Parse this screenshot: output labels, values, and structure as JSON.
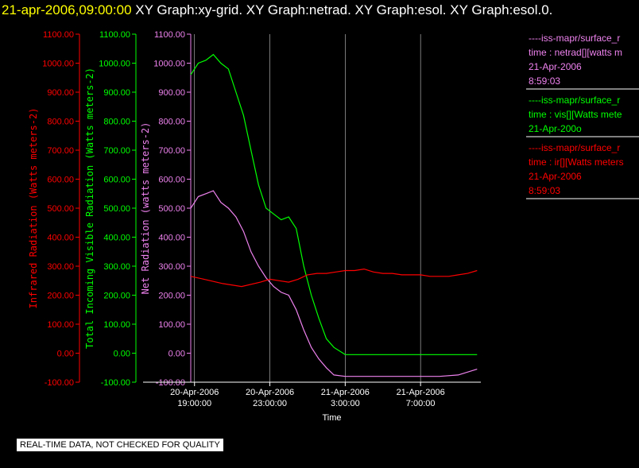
{
  "header": {
    "timestamp": "21-apr-2006,09:00:00",
    "graphs": [
      "XY Graph:xy-grid.",
      "XY Graph:netrad.",
      "XY Graph:esol.",
      "XY Graph:esol.0."
    ]
  },
  "footnote": "REAL-TIME DATA, NOT CHECKED FOR QUALITY",
  "colors": {
    "ir": "#ff0000",
    "vis": "#00ff00",
    "net": "#ee82ee",
    "grid": "#ffffff",
    "text": "#ffffff"
  },
  "chart_data": {
    "type": "line",
    "xlabel": "Time",
    "x_ticks": [
      {
        "date": "20-Apr-2006",
        "time": "19:00:00",
        "hours": 19
      },
      {
        "date": "20-Apr-2006",
        "time": "23:00:00",
        "hours": 23
      },
      {
        "date": "21-Apr-2006",
        "time": "3:00:00",
        "hours": 27
      },
      {
        "date": "21-Apr-2006",
        "time": "7:00:00",
        "hours": 31
      }
    ],
    "x_range_hours": [
      18.8,
      34.2
    ],
    "y_axes": [
      {
        "id": "ir",
        "label": "Infrared Radiation (Watts meters-2)",
        "color": "#ff0000",
        "ylim": [
          -100,
          1100
        ],
        "ticks": [
          "-100.00",
          "0.00",
          "100.00",
          "200.00",
          "300.00",
          "400.00",
          "500.00",
          "600.00",
          "700.00",
          "800.00",
          "900.00",
          "1000.00",
          "1100.00"
        ]
      },
      {
        "id": "vis",
        "label": "Total Incoming Visible Radiation (Watts meters-2)",
        "color": "#00ff00",
        "ylim": [
          -100,
          1100
        ],
        "ticks": [
          "-100.00",
          "0.00",
          "100.00",
          "200.00",
          "300.00",
          "400.00",
          "500.00",
          "600.00",
          "700.00",
          "800.00",
          "900.00",
          "1000.00",
          "1100.00"
        ]
      },
      {
        "id": "net",
        "label": "Net Radiation (watts meters-2)",
        "color": "#ee82ee",
        "ylim": [
          -100,
          1100
        ],
        "ticks": [
          "-100.00",
          "0.00",
          "100.00",
          "200.00",
          "300.00",
          "400.00",
          "500.00",
          "600.00",
          "700.00",
          "800.00",
          "900.00",
          "1000.00",
          "1100.00"
        ]
      }
    ],
    "series": [
      {
        "id": "vis",
        "color": "#00ff00",
        "x": [
          18.8,
          19.2,
          19.6,
          20.0,
          20.4,
          20.8,
          21.2,
          21.6,
          22.0,
          22.4,
          22.8,
          23.2,
          23.6,
          24.0,
          24.4,
          24.8,
          25.2,
          25.6,
          26.0,
          26.4,
          27.0,
          28.0,
          29.0,
          30.0,
          31.0,
          32.0,
          33.0,
          34.0
        ],
        "values": [
          960,
          1000,
          1010,
          1030,
          1000,
          980,
          900,
          820,
          700,
          580,
          500,
          480,
          460,
          470,
          430,
          300,
          200,
          120,
          50,
          20,
          -5,
          -5,
          -5,
          -5,
          -5,
          -5,
          -5,
          -5
        ]
      },
      {
        "id": "net",
        "color": "#ee82ee",
        "x": [
          18.8,
          19.2,
          19.6,
          20.0,
          20.4,
          20.8,
          21.2,
          21.6,
          22.0,
          22.4,
          22.8,
          23.2,
          23.6,
          24.0,
          24.4,
          24.8,
          25.2,
          25.6,
          26.0,
          26.4,
          27.0,
          28.0,
          29.0,
          30.0,
          31.0,
          32.0,
          33.0,
          34.0
        ],
        "values": [
          500,
          540,
          550,
          560,
          520,
          500,
          470,
          420,
          350,
          300,
          260,
          230,
          210,
          200,
          150,
          80,
          20,
          -20,
          -50,
          -75,
          -80,
          -80,
          -80,
          -80,
          -80,
          -80,
          -75,
          -55
        ]
      },
      {
        "id": "ir",
        "color": "#ff0000",
        "x": [
          18.8,
          19.5,
          20.5,
          21.5,
          22.5,
          23.0,
          23.5,
          24.0,
          24.5,
          25.0,
          25.5,
          26.0,
          26.5,
          27.0,
          27.5,
          28.0,
          28.5,
          29.0,
          29.5,
          30.0,
          30.5,
          31.0,
          31.5,
          32.0,
          32.5,
          33.0,
          33.5,
          34.0
        ],
        "values": [
          265,
          255,
          240,
          230,
          245,
          255,
          250,
          245,
          255,
          270,
          275,
          275,
          280,
          285,
          285,
          290,
          280,
          275,
          275,
          270,
          270,
          270,
          265,
          265,
          265,
          270,
          275,
          285
        ]
      }
    ],
    "legend": [
      {
        "lines": [
          "----iss-mapr/surface_r",
          "time : netrad[][watts m",
          "21-Apr-2006",
          "8:59:03"
        ],
        "color": "#ee82ee"
      },
      {
        "lines": [
          "----iss-mapr/surface_r",
          "time : vis[][Watts mete",
          "21-Apr-200o"
        ],
        "color": "#00ff00"
      },
      {
        "lines": [
          "----iss-mapr/surface_r",
          "time : ir[][Watts meters",
          "21-Apr-2006",
          "8:59:03"
        ],
        "color": "#ff0000"
      }
    ],
    "grid": true,
    "legend_position": "right"
  }
}
